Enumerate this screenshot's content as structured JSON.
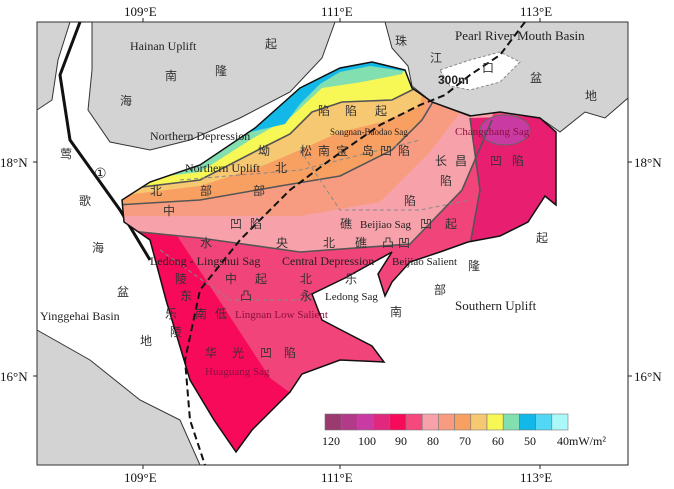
{
  "axes": {
    "top_lon": [
      "109°E",
      "111°E",
      "113°E"
    ],
    "bottom_lon": [
      "109°E",
      "111°E",
      "113°E"
    ],
    "left_lat": [
      "18°N",
      "16°N"
    ],
    "right_lat": [
      "18°N",
      "16°N"
    ]
  },
  "labels_en": {
    "hainan_uplift": "Hainan Uplift",
    "pearl_river": "Pearl River Mouth Basin",
    "northern_depression": "Northern Depression",
    "northern_uplift": "Northern Uplift",
    "songnan_baodao": "Songnan-Baodao Sag",
    "ledong_lingshui": "Ledong - Lingshui Sag",
    "central_depression": "Central Depression",
    "beijiao_sag": "Beijiao Sag",
    "beijiao_salient": "Beijiao Salient",
    "ledong_sag": "Ledong Sag",
    "changchang": "Changchang Sag",
    "southern_uplift": "Southern Uplift",
    "lingnan": "Lingnan Low Salient",
    "huaguang": "Huaguang Sag",
    "yinggehai": "Yinggehai Basin",
    "isobath": "300m",
    "marker": "①"
  },
  "labels_zh": {
    "hainan": [
      "起",
      "南",
      "隆",
      "海"
    ],
    "pearl": [
      "珠",
      "江",
      "口",
      "盆",
      "地"
    ],
    "yinggehai": [
      "莺",
      "歌",
      "海",
      "盆",
      "地"
    ],
    "north": [
      "陷",
      "坳",
      "部",
      "北",
      "起",
      "部",
      "北",
      "中",
      "陷",
      "松",
      "南",
      "宝",
      "岛",
      "凹",
      "陷"
    ],
    "central": [
      "陷",
      "凹",
      "水",
      "陵",
      "央",
      "中",
      "东",
      "乐",
      "起",
      "凸",
      "低",
      "南",
      "陵",
      "乐",
      "北",
      "永",
      "北",
      "礁",
      "礁",
      "凸",
      "凹",
      "陷",
      "凹",
      "起",
      "陷",
      "长",
      "昌",
      "凹",
      "陷"
    ],
    "huaguang": [
      "华",
      "光",
      "凹",
      "陷"
    ],
    "south": [
      "起",
      "隆",
      "部",
      "南"
    ]
  },
  "legend": {
    "ticks": [
      "120",
      "100",
      "90",
      "80",
      "70",
      "60",
      "50",
      "40mW/m²"
    ],
    "colors": [
      "#9b3a6e",
      "#b23a88",
      "#c93aa2",
      "#e0287e",
      "#f80a5a",
      "#f5487c",
      "#f7a2aa",
      "#f79c80",
      "#f7a062",
      "#f7c872",
      "#f7f755",
      "#82e0b0",
      "#12b8e8",
      "#52d8f5",
      "#aaf8f8"
    ]
  },
  "colors": {
    "land": "#d3d3d3",
    "heat_base": "#f0447a",
    "huaguang": "#f50a5a",
    "changchang": "#e81e70"
  }
}
